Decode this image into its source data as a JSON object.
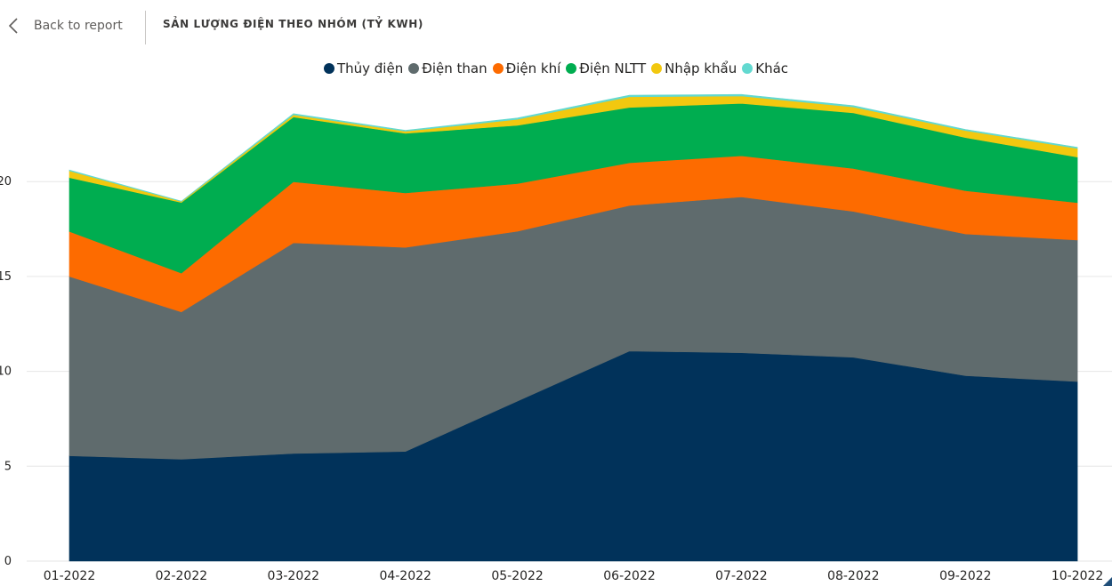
{
  "header": {
    "back_label": "Back to report",
    "title": "SẢN LƯỢNG ĐIỆN THEO NHÓM (TỶ KWH)"
  },
  "chart_data": {
    "type": "area",
    "stacked": true,
    "title": "SẢN LƯỢNG ĐIỆN THEO NHÓM (TỶ KWH)",
    "categories": [
      "01-2022",
      "02-2022",
      "03-2022",
      "04-2022",
      "05-2022",
      "06-2022",
      "07-2022",
      "08-2022",
      "09-2022",
      "10-2022"
    ],
    "y_ticks": [
      0,
      5,
      10,
      15,
      20
    ],
    "y_tick_labels": [
      "0",
      "5",
      "10",
      "15",
      "20"
    ],
    "ylim": [
      0,
      25
    ],
    "grid": true,
    "legend_position": "top-center",
    "series": [
      {
        "name": "Thủy điện",
        "color": "#01325a",
        "values": [
          5.55,
          5.37,
          5.67,
          5.78,
          8.43,
          11.07,
          10.98,
          10.74,
          9.77,
          9.46
        ]
      },
      {
        "name": "Điện than",
        "color": "#5f6b6d",
        "values": [
          9.45,
          7.76,
          11.1,
          10.75,
          8.95,
          7.67,
          8.21,
          7.69,
          7.47,
          7.46
        ]
      },
      {
        "name": "Điện khí",
        "color": "#fd6b00",
        "values": [
          2.37,
          2.05,
          3.22,
          2.87,
          2.51,
          2.25,
          2.17,
          2.26,
          2.28,
          1.97
        ]
      },
      {
        "name": "Điện NLTT",
        "color": "#00ad50",
        "values": [
          2.84,
          3.72,
          3.41,
          3.14,
          3.07,
          2.92,
          2.76,
          2.93,
          2.8,
          2.4
        ]
      },
      {
        "name": "Nhập khẩu",
        "color": "#f2c80f",
        "values": [
          0.35,
          0.05,
          0.12,
          0.11,
          0.32,
          0.56,
          0.39,
          0.31,
          0.37,
          0.46
        ]
      },
      {
        "name": "Khác",
        "color": "#62d9d0",
        "values": [
          0.05,
          0.02,
          0.06,
          0.05,
          0.07,
          0.08,
          0.08,
          0.07,
          0.06,
          0.06
        ]
      }
    ]
  }
}
